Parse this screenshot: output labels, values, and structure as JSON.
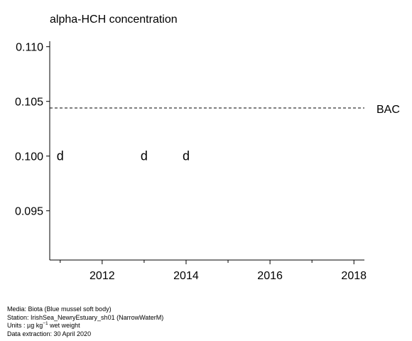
{
  "chart_data": {
    "type": "scatter",
    "title": "alpha-HCH concentration",
    "x": [
      2011,
      2013,
      2014
    ],
    "y": [
      0.1,
      0.1,
      0.1
    ],
    "marker_label": "d",
    "xlim": [
      2010.75,
      2018.25
    ],
    "ylim": [
      0.0905,
      0.1105
    ],
    "x_ticks": [
      2012,
      2014,
      2016,
      2018
    ],
    "x_tick_labels": [
      "2012",
      "2014",
      "2016",
      "2018"
    ],
    "y_ticks": [
      0.095,
      0.1,
      0.105,
      0.11
    ],
    "y_tick_labels": [
      "0.095",
      "0.100",
      "0.105",
      "0.110"
    ],
    "reference_line": {
      "label": "BAC",
      "value": 0.1044,
      "style": "dashed"
    },
    "grid": false,
    "xlabel": "",
    "ylabel": ""
  },
  "footer": {
    "media": "Media: Biota (Blue mussel soft body)",
    "station": "Station: IrishSea_NewryEstuary_sh01 (NarrowWaterM)",
    "units_prefix": "Units :  µg kg",
    "units_exponent": "−1",
    "units_suffix": " wet weight",
    "extraction": "Data extraction: 30 April 2020"
  }
}
